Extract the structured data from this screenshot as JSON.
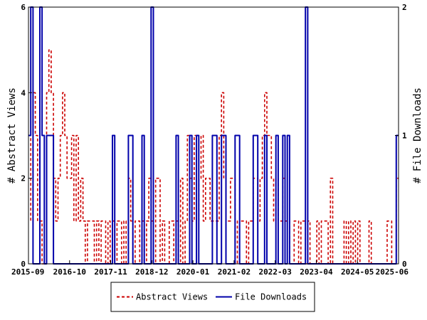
{
  "chart_data": {
    "type": "line",
    "grid": false,
    "legend_position": "bottom",
    "x_ticks": [
      "2015-09",
      "2016-10",
      "2017-11",
      "2018-12",
      "2020-01",
      "2021-02",
      "2022-03",
      "2023-04",
      "2024-05",
      "2025-06"
    ],
    "y_left": {
      "label": "# Abstract Views",
      "ylim": [
        0,
        6
      ],
      "ticks": [
        "0",
        "2",
        "4",
        "6"
      ]
    },
    "y_right": {
      "label": "# File Downloads",
      "ylim": [
        0,
        2
      ],
      "ticks": [
        "0",
        "1",
        "2"
      ]
    },
    "series": [
      {
        "name": "Abstract Views",
        "axis": "left",
        "color": "#cc0000",
        "style": "dashed",
        "values": [
          3,
          1,
          4,
          3,
          1,
          1,
          0,
          0,
          4,
          5,
          4,
          2,
          1,
          2,
          3,
          4,
          3,
          2,
          2,
          3,
          1,
          3,
          1,
          2,
          1,
          0,
          1,
          1,
          1,
          0,
          1,
          0,
          1,
          1,
          0,
          1,
          0,
          1,
          0,
          1,
          1,
          0,
          1,
          0,
          2,
          1,
          0,
          1,
          1,
          0,
          1,
          0,
          1,
          2,
          1,
          0,
          2,
          2,
          0,
          1,
          0,
          0,
          1,
          1,
          0,
          1,
          0,
          2,
          0,
          1,
          3,
          2,
          1,
          3,
          1,
          2,
          3,
          1,
          2,
          2,
          1,
          1,
          1,
          1,
          3,
          4,
          2,
          1,
          1,
          2,
          2,
          1,
          0,
          1,
          1,
          1,
          0,
          1,
          1,
          2,
          2,
          1,
          2,
          3,
          4,
          3,
          3,
          2,
          1,
          2,
          1,
          1,
          2,
          1,
          1,
          0,
          0,
          1,
          1,
          0,
          1,
          1,
          0,
          1,
          0,
          0,
          0,
          1,
          0,
          1,
          1,
          1,
          0,
          2,
          0,
          0,
          0,
          0,
          0,
          1,
          0,
          1,
          0,
          1,
          0,
          1,
          0,
          0,
          0,
          0,
          1,
          0,
          0,
          0,
          0,
          0,
          0,
          0,
          1,
          1,
          0,
          0,
          2
        ]
      },
      {
        "name": "File Downloads",
        "axis": "right",
        "color": "#0000aa",
        "style": "solid",
        "values": [
          1,
          2,
          0,
          0,
          0,
          2,
          1,
          0,
          1,
          1,
          1,
          0,
          0,
          0,
          0,
          0,
          0,
          0,
          0,
          0,
          0,
          0,
          0,
          0,
          0,
          0,
          0,
          0,
          0,
          0,
          0,
          0,
          0,
          0,
          0,
          0,
          0,
          1,
          0,
          0,
          0,
          0,
          0,
          0,
          1,
          1,
          0,
          0,
          0,
          0,
          1,
          0,
          0,
          0,
          2,
          0,
          0,
          0,
          0,
          0,
          0,
          0,
          0,
          0,
          0,
          1,
          0,
          0,
          0,
          0,
          0,
          1,
          0,
          0,
          1,
          0,
          0,
          0,
          0,
          0,
          0,
          1,
          1,
          0,
          0,
          1,
          1,
          0,
          0,
          0,
          0,
          1,
          1,
          0,
          0,
          0,
          0,
          0,
          0,
          1,
          1,
          0,
          0,
          0,
          1,
          0,
          0,
          0,
          0,
          1,
          0,
          0,
          1,
          0,
          1,
          0,
          0,
          0,
          0,
          0,
          0,
          0,
          2,
          0,
          0,
          0,
          0,
          0,
          0,
          0,
          0,
          0,
          0,
          0,
          0,
          0,
          0,
          0,
          0,
          0,
          0,
          0,
          0,
          0,
          0,
          0,
          0,
          0,
          0,
          0,
          0,
          0,
          0,
          0,
          0,
          0,
          0,
          0,
          0,
          0,
          0,
          0,
          1
        ]
      }
    ]
  }
}
